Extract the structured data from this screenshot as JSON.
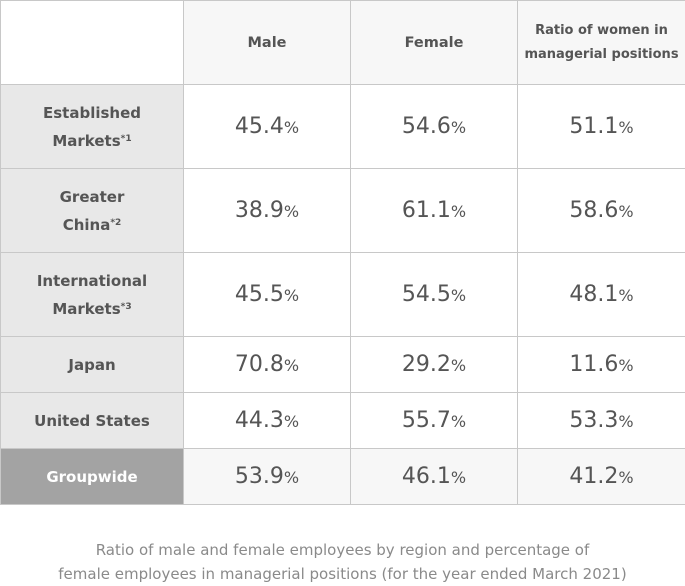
{
  "columns": {
    "male": "Male",
    "female": "Female",
    "ratio_line1": "Ratio of women in",
    "ratio_line2": "managerial positions"
  },
  "rows": [
    {
      "label_line1": "Established",
      "label_line2": "Markets",
      "note": "*1",
      "male": "45.4",
      "female": "54.6",
      "ratio": "51.1"
    },
    {
      "label_line1": "Greater",
      "label_line2": "China",
      "note": "*2",
      "male": "38.9",
      "female": "61.1",
      "ratio": "58.6"
    },
    {
      "label_line1": "International",
      "label_line2": "Markets",
      "note": "*3",
      "male": "45.5",
      "female": "54.5",
      "ratio": "48.1"
    },
    {
      "label_line1": "Japan",
      "male": "70.8",
      "female": "29.2",
      "ratio": "11.6"
    },
    {
      "label_line1": "United States",
      "male": "44.3",
      "female": "55.7",
      "ratio": "53.3"
    },
    {
      "label_line1": "Groupwide",
      "male": "53.9",
      "female": "46.1",
      "ratio": "41.2"
    }
  ],
  "unit": "%",
  "caption": {
    "line1": "Ratio of male and female employees by region and percentage of",
    "line2": "female employees in managerial positions (for the year ended March 2021)"
  }
}
